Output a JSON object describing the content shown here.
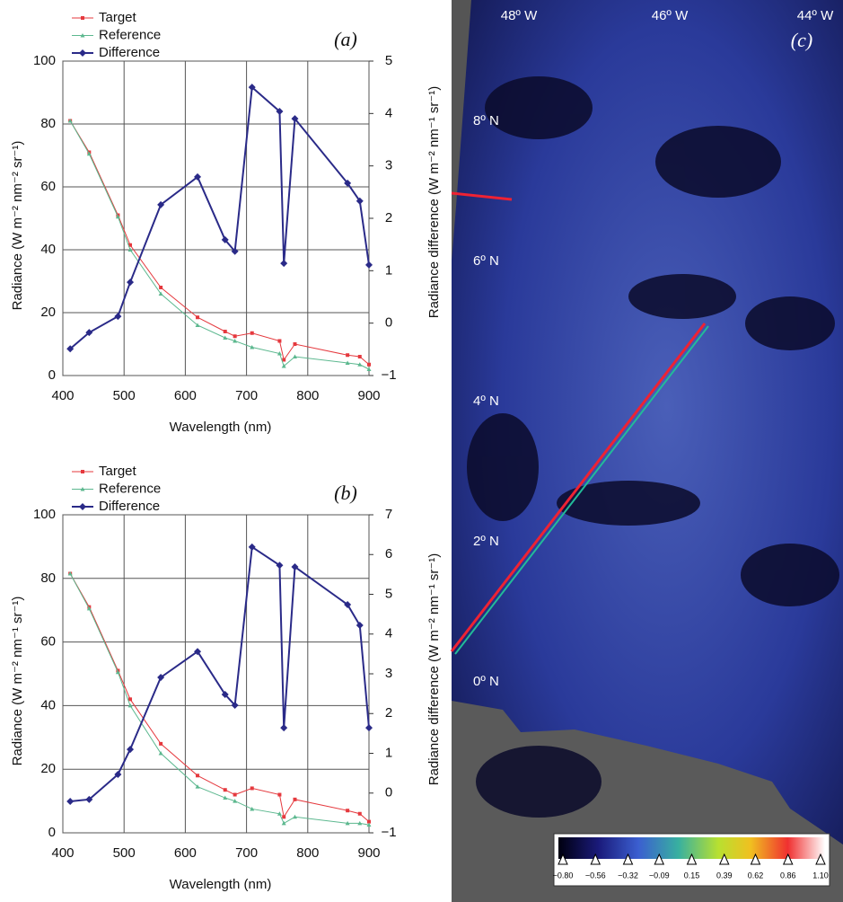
{
  "chart_data": [
    {
      "type": "line",
      "label": "(a)",
      "x_label": "Wavelength (nm)",
      "y_label": "Radiance (W m⁻² nm⁻² sr⁻¹)",
      "y2_label": "Radiance difference (W m⁻² nm⁻¹ sr⁻¹)",
      "x": [
        412,
        443,
        490,
        510,
        560,
        620,
        665,
        681,
        709,
        754,
        761,
        779,
        865,
        885,
        900
      ],
      "series": [
        {
          "name": "Target",
          "color": "#e5393e",
          "values": [
            81,
            71,
            51,
            41.5,
            28,
            18.5,
            14,
            12.5,
            13.5,
            11,
            5,
            10,
            6.5,
            6,
            3.5
          ]
        },
        {
          "name": "Reference",
          "color": "#5cb88f",
          "values": [
            81,
            70.5,
            50.5,
            40,
            26,
            16,
            12,
            11,
            9,
            7,
            3,
            6,
            4,
            3.5,
            2
          ]
        },
        {
          "name": "Difference",
          "color": "#2a2a88",
          "axis": "y2",
          "values": [
            -0.49,
            -0.18,
            0.13,
            0.78,
            2.26,
            2.79,
            1.59,
            1.37,
            4.5,
            4.04,
            1.14,
            3.9,
            2.67,
            2.33,
            1.11
          ]
        }
      ],
      "xlim": [
        400,
        900
      ],
      "xticks": [
        400,
        500,
        600,
        700,
        800,
        900
      ],
      "ylim": [
        0,
        100
      ],
      "yticks": [
        0,
        20,
        40,
        60,
        80,
        100
      ],
      "y2lim": [
        -1,
        5
      ],
      "y2ticks": [
        {
          "value": -1,
          "label": "−1"
        },
        0,
        1,
        2,
        3,
        4,
        5
      ],
      "grid": true,
      "legend": "top-left"
    },
    {
      "type": "line",
      "label": "(b)",
      "x_label": "Wavelength (nm)",
      "y_label": "Radiance (W m⁻² nm⁻¹ sr⁻¹)",
      "y2_label": "Radiance difference (W m⁻² nm⁻¹ sr⁻¹)",
      "x": [
        412,
        443,
        490,
        510,
        560,
        620,
        665,
        681,
        709,
        754,
        761,
        779,
        865,
        885,
        900
      ],
      "series": [
        {
          "name": "Target",
          "color": "#e5393e",
          "values": [
            81.5,
            71,
            51,
            42,
            28,
            18,
            13.5,
            12,
            14,
            12,
            5,
            10.5,
            7,
            6,
            3.5
          ]
        },
        {
          "name": "Reference",
          "color": "#5cb88f",
          "values": [
            81.5,
            70.5,
            50.5,
            40,
            25,
            14.5,
            11,
            10,
            7.5,
            6,
            3,
            5,
            3,
            3,
            2.5
          ]
        },
        {
          "name": "Difference",
          "color": "#2a2a88",
          "axis": "y2",
          "values": [
            -0.21,
            -0.16,
            0.47,
            1.1,
            2.91,
            3.56,
            2.48,
            2.21,
            6.19,
            5.73,
            1.64,
            5.69,
            4.74,
            4.22,
            1.64
          ]
        }
      ],
      "xlim": [
        400,
        900
      ],
      "xticks": [
        400,
        500,
        600,
        700,
        800,
        900
      ],
      "ylim": [
        0,
        100
      ],
      "yticks": [
        0,
        20,
        40,
        60,
        80,
        100
      ],
      "y2lim": [
        -1,
        7
      ],
      "y2ticks": [
        {
          "value": -1,
          "label": "−1"
        },
        0,
        1,
        2,
        3,
        4,
        5,
        6,
        7
      ],
      "grid": true,
      "legend": "top-left"
    }
  ],
  "map_panel": {
    "label": "(c)",
    "lon_labels": [
      "48º W",
      "46º W",
      "44º W"
    ],
    "lat_labels": [
      "8º N",
      "6º N",
      "4º N",
      "2º N",
      "0º N"
    ],
    "colorbar": {
      "ticks": [
        {
          "value": -0.8,
          "label": "−0.80"
        },
        {
          "value": -0.56,
          "label": "−0.56"
        },
        {
          "value": -0.32,
          "label": "−0.32"
        },
        {
          "value": -0.09,
          "label": "−0.09"
        },
        {
          "value": 0.15,
          "label": "0.15"
        },
        {
          "value": 0.39,
          "label": "0.39"
        },
        {
          "value": 0.62,
          "label": "0.62"
        },
        {
          "value": 0.86,
          "label": "0.86"
        },
        {
          "value": 1.1,
          "label": "1.10"
        }
      ]
    }
  }
}
